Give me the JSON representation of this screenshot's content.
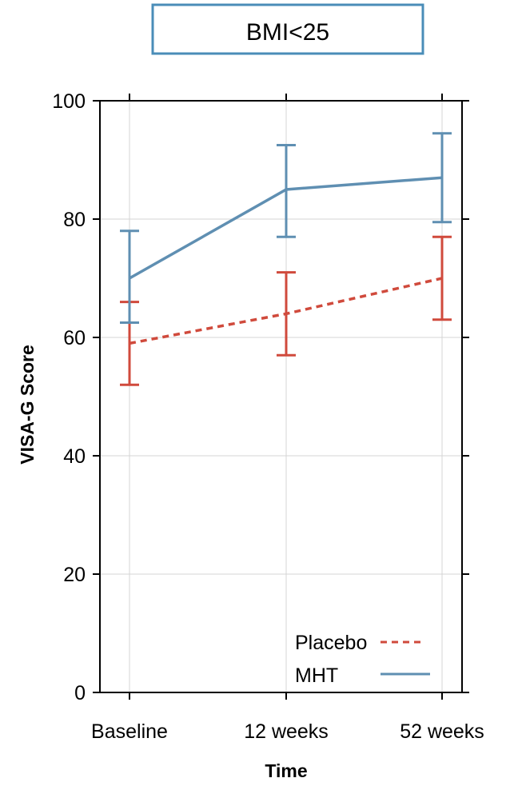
{
  "chart_data": {
    "type": "line",
    "title": "BMI<25",
    "xlabel": "Time",
    "ylabel": "VISA-G Score",
    "categories": [
      "Baseline",
      "12 weeks",
      "52 weeks"
    ],
    "ylim": [
      0,
      100
    ],
    "yticks": [
      0,
      20,
      40,
      60,
      80,
      100
    ],
    "grid": true,
    "legend_position": "bottom-right",
    "series": [
      {
        "name": "Placebo",
        "style": "dashed",
        "color": "#d04a3c",
        "values": [
          59,
          64,
          70
        ],
        "error_low": [
          52,
          57,
          63
        ],
        "error_high": [
          66,
          71,
          77
        ]
      },
      {
        "name": "MHT",
        "style": "solid",
        "color": "#5f8fb2",
        "values": [
          70,
          85,
          87
        ],
        "error_low": [
          62.5,
          77,
          79.5
        ],
        "error_high": [
          78,
          92.5,
          94.5
        ]
      }
    ],
    "title_box_color": "#4a8db8"
  }
}
